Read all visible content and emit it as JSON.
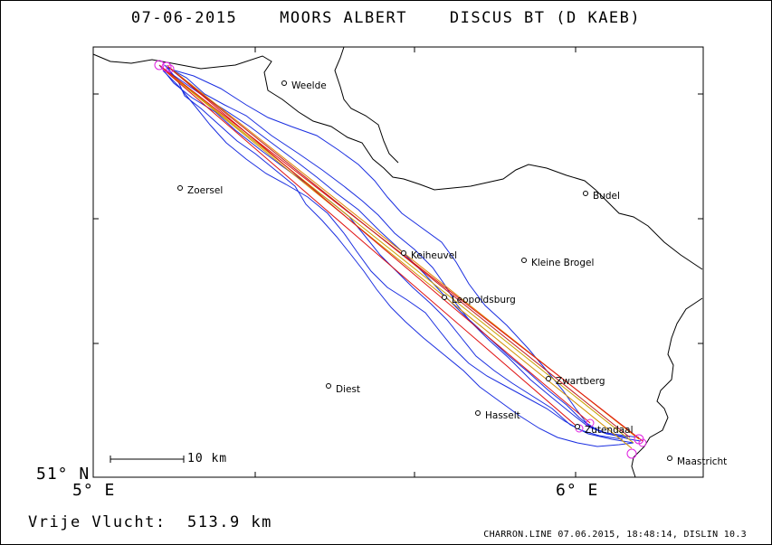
{
  "header": {
    "title": "07-06-2015    MOORS ALBERT    DISCUS BT (D KAEB)"
  },
  "axes": {
    "lat_label": "51° N",
    "lon_labels": [
      "5° E",
      "6° E"
    ]
  },
  "scale": {
    "label": "10 km"
  },
  "cities": [
    {
      "name": "Weelde"
    },
    {
      "name": "Zoersel"
    },
    {
      "name": "Budel"
    },
    {
      "name": "Keiheuvel"
    },
    {
      "name": "Kleine Brogel"
    },
    {
      "name": "Leopoldsburg"
    },
    {
      "name": "Zwartberg"
    },
    {
      "name": "Diest"
    },
    {
      "name": "Hasselt"
    },
    {
      "name": "Zutendaal"
    },
    {
      "name": "Maastricht"
    }
  ],
  "footer": {
    "distance": "Vrije Vlucht:  513.9 km",
    "credit": "CHARRON.LINE 07.06.2015, 18:48:14, DISLIN 10.3"
  },
  "colors": {
    "track": "#1a2ee0",
    "optimal_line": "#e01010",
    "alt_line": "#c8a000",
    "turnpoint": "#e020e0",
    "border": "#000000"
  }
}
